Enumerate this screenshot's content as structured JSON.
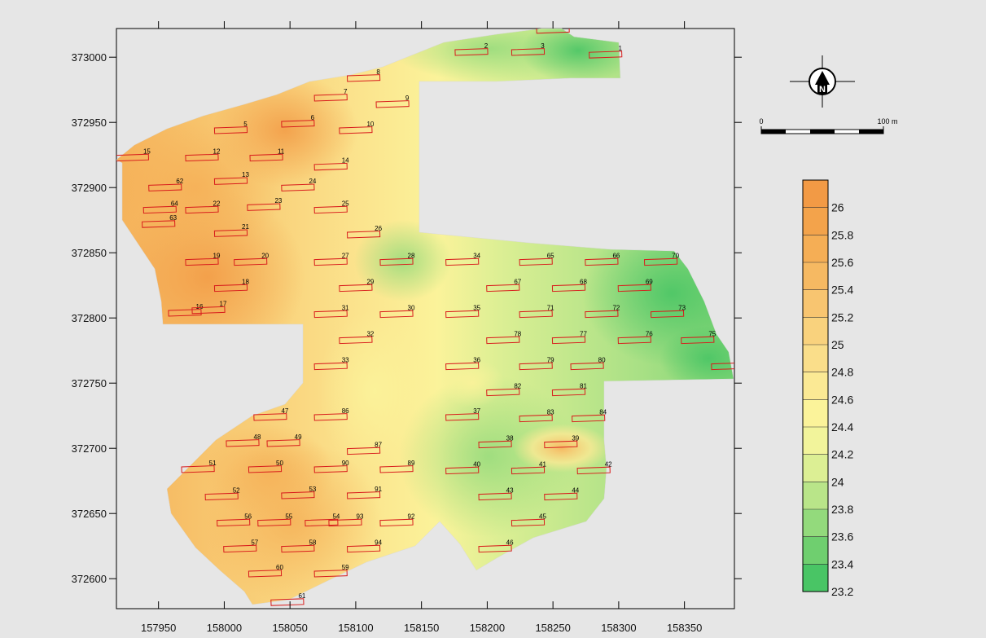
{
  "map": {
    "x_ticks": [
      "157950",
      "158000",
      "158050",
      "158100",
      "158150",
      "158200",
      "158250",
      "158300",
      "158350"
    ],
    "y_ticks": [
      "373000",
      "372950",
      "372900",
      "372850",
      "372800",
      "372750",
      "372700",
      "372650",
      "372600"
    ],
    "x_range": [
      157918,
      158388
    ],
    "y_range": [
      372577,
      373022
    ],
    "colors": {
      "high": "#f3a04a",
      "mid": "#fbf39a",
      "low": "#49c565",
      "plot_outline": "#d81c1c"
    }
  },
  "plots": [
    {
      "label": "1",
      "x": 158290,
      "y": 373002
    },
    {
      "label": "2",
      "x": 158188,
      "y": 373004
    },
    {
      "label": "3",
      "x": 158231,
      "y": 373004
    },
    {
      "label": "4",
      "x": 158250,
      "y": 373021
    },
    {
      "label": "5",
      "x": 158005,
      "y": 372944
    },
    {
      "label": "6",
      "x": 158056,
      "y": 372949
    },
    {
      "label": "7",
      "x": 158081,
      "y": 372969
    },
    {
      "label": "8",
      "x": 158106,
      "y": 372984
    },
    {
      "label": "9",
      "x": 158128,
      "y": 372964
    },
    {
      "label": "10",
      "x": 158100,
      "y": 372944
    },
    {
      "label": "11",
      "x": 158032,
      "y": 372923
    },
    {
      "label": "12",
      "x": 157983,
      "y": 372923
    },
    {
      "label": "13",
      "x": 158005,
      "y": 372905
    },
    {
      "label": "14",
      "x": 158081,
      "y": 372916
    },
    {
      "label": "15",
      "x": 157930,
      "y": 372923
    },
    {
      "label": "62",
      "x": 157955,
      "y": 372900
    },
    {
      "label": "24",
      "x": 158056,
      "y": 372900
    },
    {
      "label": "64",
      "x": 157951,
      "y": 372883
    },
    {
      "label": "22",
      "x": 157983,
      "y": 372883
    },
    {
      "label": "23",
      "x": 158030,
      "y": 372885
    },
    {
      "label": "25",
      "x": 158081,
      "y": 372883
    },
    {
      "label": "63",
      "x": 157950,
      "y": 372872
    },
    {
      "label": "21",
      "x": 158005,
      "y": 372865
    },
    {
      "label": "26",
      "x": 158106,
      "y": 372864
    },
    {
      "label": "19",
      "x": 157983,
      "y": 372843
    },
    {
      "label": "20",
      "x": 158020,
      "y": 372843
    },
    {
      "label": "27",
      "x": 158081,
      "y": 372843
    },
    {
      "label": "28",
      "x": 158131,
      "y": 372843
    },
    {
      "label": "34",
      "x": 158181,
      "y": 372843
    },
    {
      "label": "65",
      "x": 158237,
      "y": 372843
    },
    {
      "label": "66",
      "x": 158287,
      "y": 372843
    },
    {
      "label": "70",
      "x": 158332,
      "y": 372843
    },
    {
      "label": "18",
      "x": 158005,
      "y": 372823
    },
    {
      "label": "29",
      "x": 158100,
      "y": 372823
    },
    {
      "label": "67",
      "x": 158212,
      "y": 372823
    },
    {
      "label": "68",
      "x": 158262,
      "y": 372823
    },
    {
      "label": "69",
      "x": 158312,
      "y": 372823
    },
    {
      "label": "16",
      "x": 157970,
      "y": 372804
    },
    {
      "label": "17",
      "x": 157988,
      "y": 372806
    },
    {
      "label": "31",
      "x": 158081,
      "y": 372803
    },
    {
      "label": "30",
      "x": 158131,
      "y": 372803
    },
    {
      "label": "35",
      "x": 158181,
      "y": 372803
    },
    {
      "label": "71",
      "x": 158237,
      "y": 372803
    },
    {
      "label": "72",
      "x": 158287,
      "y": 372803
    },
    {
      "label": "73",
      "x": 158337,
      "y": 372803
    },
    {
      "label": "32",
      "x": 158100,
      "y": 372783
    },
    {
      "label": "78",
      "x": 158212,
      "y": 372783
    },
    {
      "label": "77",
      "x": 158262,
      "y": 372783
    },
    {
      "label": "76",
      "x": 158312,
      "y": 372783
    },
    {
      "label": "75",
      "x": 158360,
      "y": 372783
    },
    {
      "label": "33",
      "x": 158081,
      "y": 372763
    },
    {
      "label": "36",
      "x": 158181,
      "y": 372763
    },
    {
      "label": "79",
      "x": 158237,
      "y": 372763
    },
    {
      "label": "80",
      "x": 158276,
      "y": 372763
    },
    {
      "label": "74",
      "x": 158383,
      "y": 372763
    },
    {
      "label": "82",
      "x": 158212,
      "y": 372743
    },
    {
      "label": "81",
      "x": 158262,
      "y": 372743
    },
    {
      "label": "47",
      "x": 158035,
      "y": 372724
    },
    {
      "label": "86",
      "x": 158081,
      "y": 372724
    },
    {
      "label": "37",
      "x": 158181,
      "y": 372724
    },
    {
      "label": "83",
      "x": 158237,
      "y": 372723
    },
    {
      "label": "84",
      "x": 158277,
      "y": 372723
    },
    {
      "label": "48",
      "x": 158014,
      "y": 372704
    },
    {
      "label": "49",
      "x": 158045,
      "y": 372704
    },
    {
      "label": "38",
      "x": 158206,
      "y": 372703
    },
    {
      "label": "39",
      "x": 158256,
      "y": 372703
    },
    {
      "label": "87",
      "x": 158106,
      "y": 372698
    },
    {
      "label": "51",
      "x": 157980,
      "y": 372684
    },
    {
      "label": "50",
      "x": 158031,
      "y": 372684
    },
    {
      "label": "90",
      "x": 158081,
      "y": 372684
    },
    {
      "label": "89",
      "x": 158131,
      "y": 372684
    },
    {
      "label": "40",
      "x": 158181,
      "y": 372683
    },
    {
      "label": "41",
      "x": 158231,
      "y": 372683
    },
    {
      "label": "42",
      "x": 158281,
      "y": 372683
    },
    {
      "label": "52",
      "x": 157998,
      "y": 372663
    },
    {
      "label": "53",
      "x": 158056,
      "y": 372664
    },
    {
      "label": "91",
      "x": 158106,
      "y": 372664
    },
    {
      "label": "43",
      "x": 158206,
      "y": 372663
    },
    {
      "label": "44",
      "x": 158256,
      "y": 372663
    },
    {
      "label": "56",
      "x": 158007,
      "y": 372643
    },
    {
      "label": "55",
      "x": 158038,
      "y": 372643
    },
    {
      "label": "54",
      "x": 158074,
      "y": 372643
    },
    {
      "label": "93",
      "x": 158092,
      "y": 372643
    },
    {
      "label": "92",
      "x": 158131,
      "y": 372643
    },
    {
      "label": "45",
      "x": 158231,
      "y": 372643
    },
    {
      "label": "57",
      "x": 158012,
      "y": 372623
    },
    {
      "label": "58",
      "x": 158056,
      "y": 372623
    },
    {
      "label": "94",
      "x": 158106,
      "y": 372623
    },
    {
      "label": "46",
      "x": 158206,
      "y": 372623
    },
    {
      "label": "60",
      "x": 158031,
      "y": 372604
    },
    {
      "label": "59",
      "x": 158081,
      "y": 372604
    },
    {
      "label": "61",
      "x": 158048,
      "y": 372582
    }
  ],
  "north_arrow": {
    "letter": "N"
  },
  "scale_bar": {
    "start_label": "0",
    "end_label": "100 m"
  },
  "legend": {
    "labels": [
      "26",
      "25.8",
      "25.6",
      "25.4",
      "25.2",
      "25",
      "24.8",
      "24.6",
      "24.4",
      "24.2",
      "24",
      "23.8",
      "23.6",
      "23.4",
      "23.2"
    ],
    "colors": [
      "#f29a45",
      "#f3a34b",
      "#f5ae55",
      "#f6b962",
      "#f8c570",
      "#f9d27d",
      "#fade8a",
      "#fbe994",
      "#fbf39a",
      "#f2f49b",
      "#dcef94",
      "#b9e589",
      "#93da7c",
      "#6fcf6f",
      "#49c565"
    ]
  }
}
